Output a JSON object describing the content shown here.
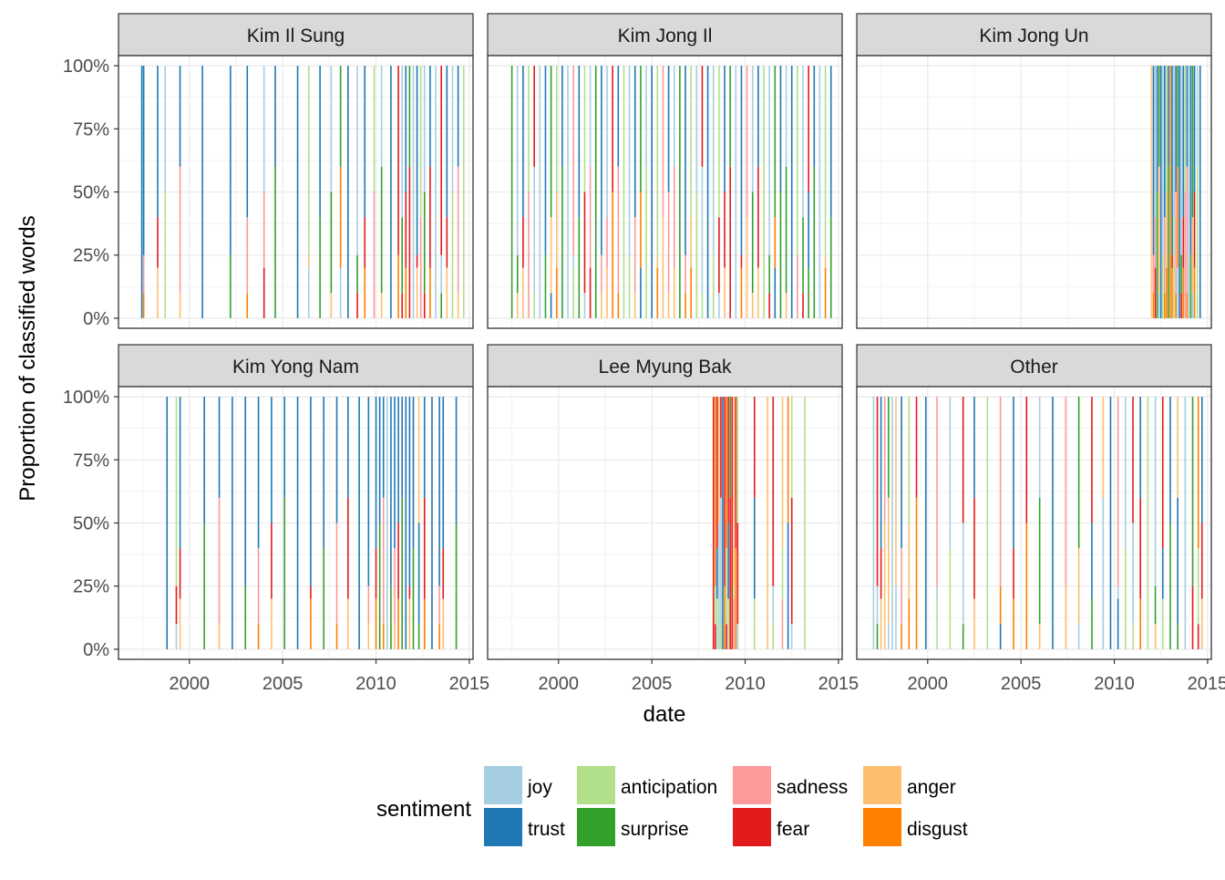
{
  "chart_data": {
    "type": "bar",
    "layout": "faceted-stacked-proportion",
    "xlabel": "date",
    "ylabel": "Proportion of classified words",
    "x_ticks": [
      "2000",
      "2005",
      "2010",
      "2015"
    ],
    "x_tick_values": [
      2000,
      2005,
      2010,
      2015
    ],
    "x_range": [
      1996.2,
      2015.2
    ],
    "y_ticks": [
      "0%",
      "25%",
      "50%",
      "75%",
      "100%"
    ],
    "y_tick_values": [
      0,
      0.25,
      0.5,
      0.75,
      1
    ],
    "y_range": [
      -0.04,
      1.04
    ],
    "grid": true,
    "legend": {
      "title": "sentiment",
      "position": "bottom",
      "entries": [
        {
          "name": "joy",
          "color": "#a6cee3"
        },
        {
          "name": "trust",
          "color": "#1f78b4"
        },
        {
          "name": "anticipation",
          "color": "#b2df8a"
        },
        {
          "name": "surprise",
          "color": "#33a02c"
        },
        {
          "name": "sadness",
          "color": "#fb9a99"
        },
        {
          "name": "fear",
          "color": "#e31a1c"
        },
        {
          "name": "anger",
          "color": "#fdbf6f"
        },
        {
          "name": "disgust",
          "color": "#ff7f00"
        }
      ]
    },
    "panels": [
      {
        "title": "Kim Il Sung",
        "date_range": [
          1997.4,
          2014.9
        ],
        "events": [
          {
            "x": 1997.45,
            "c": "#1f78b4"
          },
          {
            "x": 1997.55,
            "c": "#1f78b4"
          },
          {
            "x": 1998.3,
            "c": "#1f78b4"
          },
          {
            "x": 1998.7,
            "c": "#a6cee3"
          },
          {
            "x": 1999.5,
            "c": "#1f78b4"
          },
          {
            "x": 2000.7,
            "c": "#1f78b4"
          },
          {
            "x": 2002.2,
            "c": "#1f78b4"
          },
          {
            "x": 2003.1,
            "c": "#1f78b4"
          },
          {
            "x": 2004.0,
            "c": "#a6cee3"
          },
          {
            "x": 2004.6,
            "c": "#1f78b4"
          },
          {
            "x": 2005.8,
            "c": "#1f78b4"
          },
          {
            "x": 2006.4,
            "c": "#b2df8a"
          },
          {
            "x": 2007.0,
            "c": "#1f78b4"
          },
          {
            "x": 2007.6,
            "c": "#a6cee3"
          },
          {
            "x": 2008.1,
            "c": "#33a02c"
          },
          {
            "x": 2008.5,
            "c": "#1f78b4"
          },
          {
            "x": 2009.0,
            "c": "#a6cee3"
          },
          {
            "x": 2009.4,
            "c": "#1f78b4"
          },
          {
            "x": 2009.9,
            "c": "#b2df8a"
          },
          {
            "x": 2010.3,
            "c": "#a6cee3"
          },
          {
            "x": 2010.8,
            "c": "#1f78b4"
          },
          {
            "x": 2011.2,
            "c": "#e31a1c"
          },
          {
            "x": 2011.4,
            "c": "#a6cee3"
          },
          {
            "x": 2011.6,
            "c": "#1f78b4"
          },
          {
            "x": 2011.8,
            "c": "#33a02c"
          },
          {
            "x": 2012.0,
            "c": "#a6cee3"
          },
          {
            "x": 2012.2,
            "c": "#1f78b4"
          },
          {
            "x": 2012.4,
            "c": "#b2df8a"
          },
          {
            "x": 2012.6,
            "c": "#a6cee3"
          },
          {
            "x": 2012.9,
            "c": "#1f78b4"
          },
          {
            "x": 2013.2,
            "c": "#a6cee3"
          },
          {
            "x": 2013.5,
            "c": "#e31a1c"
          },
          {
            "x": 2013.8,
            "c": "#1f78b4"
          },
          {
            "x": 2014.1,
            "c": "#a6cee3"
          },
          {
            "x": 2014.4,
            "c": "#1f78b4"
          },
          {
            "x": 2014.7,
            "c": "#b2df8a"
          }
        ]
      },
      {
        "title": "Kim Jong Il",
        "date_range": [
          1997.4,
          2014.9
        ],
        "events": [
          {
            "x": 1997.5,
            "c": "#33a02c"
          },
          {
            "x": 1997.8,
            "c": "#a6cee3"
          },
          {
            "x": 1998.1,
            "c": "#1f78b4"
          },
          {
            "x": 1998.4,
            "c": "#b2df8a"
          },
          {
            "x": 1998.7,
            "c": "#e31a1c"
          },
          {
            "x": 1999.0,
            "c": "#a6cee3"
          },
          {
            "x": 1999.3,
            "c": "#1f78b4"
          },
          {
            "x": 1999.6,
            "c": "#33a02c"
          },
          {
            "x": 1999.9,
            "c": "#b2df8a"
          },
          {
            "x": 2000.2,
            "c": "#1f78b4"
          },
          {
            "x": 2000.5,
            "c": "#a6cee3"
          },
          {
            "x": 2000.8,
            "c": "#fb9a99"
          },
          {
            "x": 2001.1,
            "c": "#1f78b4"
          },
          {
            "x": 2001.4,
            "c": "#b2df8a"
          },
          {
            "x": 2001.7,
            "c": "#a6cee3"
          },
          {
            "x": 2002.0,
            "c": "#33a02c"
          },
          {
            "x": 2002.3,
            "c": "#1f78b4"
          },
          {
            "x": 2002.6,
            "c": "#a6cee3"
          },
          {
            "x": 2002.9,
            "c": "#e31a1c"
          },
          {
            "x": 2003.2,
            "c": "#1f78b4"
          },
          {
            "x": 2003.5,
            "c": "#b2df8a"
          },
          {
            "x": 2003.8,
            "c": "#a6cee3"
          },
          {
            "x": 2004.1,
            "c": "#1f78b4"
          },
          {
            "x": 2004.4,
            "c": "#33a02c"
          },
          {
            "x": 2004.7,
            "c": "#a6cee3"
          },
          {
            "x": 2005.0,
            "c": "#1f78b4"
          },
          {
            "x": 2005.3,
            "c": "#b2df8a"
          },
          {
            "x": 2005.6,
            "c": "#fb9a99"
          },
          {
            "x": 2005.9,
            "c": "#1f78b4"
          },
          {
            "x": 2006.2,
            "c": "#a6cee3"
          },
          {
            "x": 2006.5,
            "c": "#33a02c"
          },
          {
            "x": 2006.8,
            "c": "#1f78b4"
          },
          {
            "x": 2007.1,
            "c": "#b2df8a"
          },
          {
            "x": 2007.4,
            "c": "#a6cee3"
          },
          {
            "x": 2007.7,
            "c": "#e31a1c"
          },
          {
            "x": 2008.0,
            "c": "#1f78b4"
          },
          {
            "x": 2008.3,
            "c": "#a6cee3"
          },
          {
            "x": 2008.6,
            "c": "#b2df8a"
          },
          {
            "x": 2008.9,
            "c": "#1f78b4"
          },
          {
            "x": 2009.2,
            "c": "#33a02c"
          },
          {
            "x": 2009.5,
            "c": "#a6cee3"
          },
          {
            "x": 2009.8,
            "c": "#1f78b4"
          },
          {
            "x": 2010.1,
            "c": "#fb9a99"
          },
          {
            "x": 2010.4,
            "c": "#a6cee3"
          },
          {
            "x": 2010.7,
            "c": "#1f78b4"
          },
          {
            "x": 2011.0,
            "c": "#b2df8a"
          },
          {
            "x": 2011.3,
            "c": "#a6cee3"
          },
          {
            "x": 2011.6,
            "c": "#33a02c"
          },
          {
            "x": 2011.9,
            "c": "#1f78b4"
          },
          {
            "x": 2012.2,
            "c": "#a6cee3"
          },
          {
            "x": 2012.5,
            "c": "#1f78b4"
          },
          {
            "x": 2012.8,
            "c": "#b2df8a"
          },
          {
            "x": 2013.1,
            "c": "#a6cee3"
          },
          {
            "x": 2013.4,
            "c": "#e31a1c"
          },
          {
            "x": 2013.7,
            "c": "#1f78b4"
          },
          {
            "x": 2014.0,
            "c": "#a6cee3"
          },
          {
            "x": 2014.3,
            "c": "#b2df8a"
          },
          {
            "x": 2014.6,
            "c": "#1f78b4"
          }
        ]
      },
      {
        "title": "Kim Jong Un",
        "date_range": [
          2012.0,
          2014.7
        ],
        "events": [
          {
            "x": 2012.0,
            "c": "#fdbf6f"
          },
          {
            "x": 2012.1,
            "c": "#1f78b4"
          },
          {
            "x": 2012.2,
            "c": "#a6cee3"
          },
          {
            "x": 2012.3,
            "c": "#1f78b4"
          },
          {
            "x": 2012.4,
            "c": "#33a02c"
          },
          {
            "x": 2012.5,
            "c": "#1f78b4"
          },
          {
            "x": 2012.6,
            "c": "#a6cee3"
          },
          {
            "x": 2012.7,
            "c": "#1f78b4"
          },
          {
            "x": 2012.8,
            "c": "#b2df8a"
          },
          {
            "x": 2012.9,
            "c": "#1f78b4"
          },
          {
            "x": 2013.0,
            "c": "#ff7f00"
          },
          {
            "x": 2013.1,
            "c": "#1f78b4"
          },
          {
            "x": 2013.2,
            "c": "#a6cee3"
          },
          {
            "x": 2013.3,
            "c": "#1f78b4"
          },
          {
            "x": 2013.4,
            "c": "#33a02c"
          },
          {
            "x": 2013.5,
            "c": "#1f78b4"
          },
          {
            "x": 2013.6,
            "c": "#a6cee3"
          },
          {
            "x": 2013.7,
            "c": "#1f78b4"
          },
          {
            "x": 2013.8,
            "c": "#b2df8a"
          },
          {
            "x": 2013.9,
            "c": "#1f78b4"
          },
          {
            "x": 2014.0,
            "c": "#a6cee3"
          },
          {
            "x": 2014.1,
            "c": "#1f78b4"
          },
          {
            "x": 2014.2,
            "c": "#33a02c"
          },
          {
            "x": 2014.3,
            "c": "#1f78b4"
          },
          {
            "x": 2014.45,
            "c": "#a6cee3"
          },
          {
            "x": 2014.6,
            "c": "#1f78b4"
          }
        ]
      },
      {
        "title": "Kim Yong Nam",
        "date_range": [
          1998.8,
          2014.4
        ],
        "events": [
          {
            "x": 1998.8,
            "c": "#1f78b4"
          },
          {
            "x": 1999.3,
            "c": "#b2df8a"
          },
          {
            "x": 1999.5,
            "c": "#1f78b4"
          },
          {
            "x": 2000.8,
            "c": "#1f78b4"
          },
          {
            "x": 2001.6,
            "c": "#1f78b4"
          },
          {
            "x": 2002.3,
            "c": "#1f78b4"
          },
          {
            "x": 2003.0,
            "c": "#1f78b4"
          },
          {
            "x": 2003.7,
            "c": "#1f78b4"
          },
          {
            "x": 2004.4,
            "c": "#1f78b4"
          },
          {
            "x": 2005.1,
            "c": "#1f78b4"
          },
          {
            "x": 2005.8,
            "c": "#1f78b4"
          },
          {
            "x": 2006.5,
            "c": "#1f78b4"
          },
          {
            "x": 2007.2,
            "c": "#1f78b4"
          },
          {
            "x": 2007.9,
            "c": "#1f78b4"
          },
          {
            "x": 2008.5,
            "c": "#1f78b4"
          },
          {
            "x": 2009.1,
            "c": "#1f78b4"
          },
          {
            "x": 2009.6,
            "c": "#1f78b4"
          },
          {
            "x": 2010.0,
            "c": "#1f78b4"
          },
          {
            "x": 2010.2,
            "c": "#1f78b4"
          },
          {
            "x": 2010.4,
            "c": "#1f78b4"
          },
          {
            "x": 2010.6,
            "c": "#a6cee3"
          },
          {
            "x": 2010.8,
            "c": "#1f78b4"
          },
          {
            "x": 2011.0,
            "c": "#1f78b4"
          },
          {
            "x": 2011.2,
            "c": "#1f78b4"
          },
          {
            "x": 2011.4,
            "c": "#1f78b4"
          },
          {
            "x": 2011.6,
            "c": "#1f78b4"
          },
          {
            "x": 2011.8,
            "c": "#1f78b4"
          },
          {
            "x": 2012.0,
            "c": "#1f78b4"
          },
          {
            "x": 2012.3,
            "c": "#fdbf6f"
          },
          {
            "x": 2012.6,
            "c": "#1f78b4"
          },
          {
            "x": 2013.0,
            "c": "#1f78b4"
          },
          {
            "x": 2013.4,
            "c": "#1f78b4"
          },
          {
            "x": 2013.6,
            "c": "#1f78b4"
          },
          {
            "x": 2014.3,
            "c": "#1f78b4"
          }
        ]
      },
      {
        "title": "Lee Myung Bak",
        "date_range": [
          2008.3,
          2013.2
        ],
        "events": [
          {
            "x": 2008.3,
            "c": "#e31a1c"
          },
          {
            "x": 2008.4,
            "c": "#ff7f00"
          },
          {
            "x": 2008.5,
            "c": "#e31a1c"
          },
          {
            "x": 2008.6,
            "c": "#fdbf6f"
          },
          {
            "x": 2008.7,
            "c": "#e31a1c"
          },
          {
            "x": 2008.8,
            "c": "#1f78b4"
          },
          {
            "x": 2008.9,
            "c": "#e31a1c"
          },
          {
            "x": 2009.0,
            "c": "#ff7f00"
          },
          {
            "x": 2009.1,
            "c": "#e31a1c"
          },
          {
            "x": 2009.2,
            "c": "#33a02c"
          },
          {
            "x": 2009.3,
            "c": "#e31a1c"
          },
          {
            "x": 2009.4,
            "c": "#fdbf6f"
          },
          {
            "x": 2009.5,
            "c": "#e31a1c"
          },
          {
            "x": 2009.6,
            "c": "#b2df8a"
          },
          {
            "x": 2010.5,
            "c": "#e31a1c"
          },
          {
            "x": 2011.2,
            "c": "#fdbf6f"
          },
          {
            "x": 2011.5,
            "c": "#e31a1c"
          },
          {
            "x": 2012.0,
            "c": "#fdbf6f"
          },
          {
            "x": 2012.3,
            "c": "#ff7f00"
          },
          {
            "x": 2012.5,
            "c": "#b2df8a"
          },
          {
            "x": 2013.2,
            "c": "#b2df8a"
          }
        ]
      },
      {
        "title": "Other",
        "date_range": [
          1997.0,
          2014.8
        ],
        "events": [
          {
            "x": 1997.1,
            "c": "#a6cee3"
          },
          {
            "x": 1997.3,
            "c": "#e31a1c"
          },
          {
            "x": 1997.5,
            "c": "#1f78b4"
          },
          {
            "x": 1997.7,
            "c": "#fb9a99"
          },
          {
            "x": 1997.9,
            "c": "#33a02c"
          },
          {
            "x": 1998.1,
            "c": "#a6cee3"
          },
          {
            "x": 1998.3,
            "c": "#fdbf6f"
          },
          {
            "x": 1998.6,
            "c": "#1f78b4"
          },
          {
            "x": 1999.0,
            "c": "#b2df8a"
          },
          {
            "x": 1999.4,
            "c": "#e31a1c"
          },
          {
            "x": 1999.9,
            "c": "#1f78b4"
          },
          {
            "x": 2000.5,
            "c": "#fb9a99"
          },
          {
            "x": 2001.2,
            "c": "#a6cee3"
          },
          {
            "x": 2001.9,
            "c": "#e31a1c"
          },
          {
            "x": 2002.5,
            "c": "#1f78b4"
          },
          {
            "x": 2003.2,
            "c": "#b2df8a"
          },
          {
            "x": 2003.9,
            "c": "#fb9a99"
          },
          {
            "x": 2004.6,
            "c": "#1f78b4"
          },
          {
            "x": 2005.3,
            "c": "#e31a1c"
          },
          {
            "x": 2006.0,
            "c": "#a6cee3"
          },
          {
            "x": 2006.7,
            "c": "#1f78b4"
          },
          {
            "x": 2007.4,
            "c": "#fb9a99"
          },
          {
            "x": 2008.1,
            "c": "#33a02c"
          },
          {
            "x": 2008.8,
            "c": "#e31a1c"
          },
          {
            "x": 2009.4,
            "c": "#fdbf6f"
          },
          {
            "x": 2009.8,
            "c": "#1f78b4"
          },
          {
            "x": 2010.2,
            "c": "#fb9a99"
          },
          {
            "x": 2010.6,
            "c": "#a6cee3"
          },
          {
            "x": 2011.0,
            "c": "#e31a1c"
          },
          {
            "x": 2011.4,
            "c": "#1f78b4"
          },
          {
            "x": 2011.8,
            "c": "#b2df8a"
          },
          {
            "x": 2012.2,
            "c": "#a6cee3"
          },
          {
            "x": 2012.6,
            "c": "#e31a1c"
          },
          {
            "x": 2013.0,
            "c": "#1f78b4"
          },
          {
            "x": 2013.4,
            "c": "#fdbf6f"
          },
          {
            "x": 2013.8,
            "c": "#a6cee3"
          },
          {
            "x": 2014.2,
            "c": "#33a02c"
          },
          {
            "x": 2014.5,
            "c": "#ff7f00"
          },
          {
            "x": 2014.7,
            "c": "#1f78b4"
          }
        ]
      }
    ]
  }
}
